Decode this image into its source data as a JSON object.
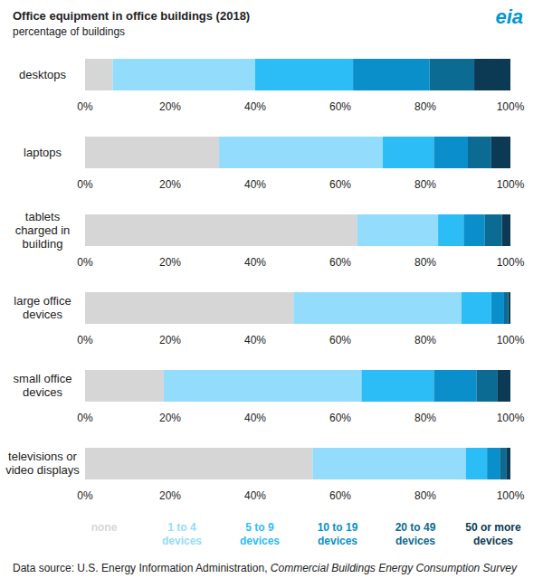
{
  "chart_data": {
    "type": "bar",
    "title": "Office equipment in office buildings (2018)",
    "subtitle": "percentage of buildings",
    "logo": "eia",
    "source": [
      "Data source: U.S. Energy Information Administration, ",
      "Commercial Buildings Energy Consumption Survey"
    ],
    "orientation": "horizontal",
    "stacked": true,
    "categories": [
      "desktops",
      "laptops",
      "tablets charged in building",
      "large office devices",
      "small office devices",
      "televisions or video displays"
    ],
    "series": [
      {
        "name": "none",
        "color": "#d6d6d6",
        "values": [
          6.5,
          31.5,
          64,
          49,
          18.5,
          53.5
        ]
      },
      {
        "name": "1 to 4 devices",
        "color": "#93dcfb",
        "values": [
          33.5,
          38.5,
          19,
          39.5,
          46.5,
          36
        ]
      },
      {
        "name": "5 to 9 devices",
        "color": "#2cbdf6",
        "values": [
          23,
          12,
          6,
          7,
          17,
          5
        ]
      },
      {
        "name": "10 to 19 devices",
        "color": "#0a8fcb",
        "values": [
          18,
          8,
          5,
          3,
          10,
          3
        ]
      },
      {
        "name": "20 to 49 devices",
        "color": "#0b6b92",
        "values": [
          10.5,
          5.5,
          4,
          1,
          5,
          1.5
        ]
      },
      {
        "name": "50 or more devices",
        "color": "#0c3a55",
        "values": [
          8.5,
          4.5,
          2,
          0.5,
          3,
          1
        ]
      }
    ],
    "xlim": [
      0,
      100
    ],
    "xticks": [
      {
        "value": 0,
        "label": "0%"
      },
      {
        "value": 20,
        "label": "20%"
      },
      {
        "value": 40,
        "label": "40%"
      },
      {
        "value": 60,
        "label": "60%"
      },
      {
        "value": 80,
        "label": "80%"
      },
      {
        "value": 100,
        "label": "100%"
      }
    ]
  }
}
